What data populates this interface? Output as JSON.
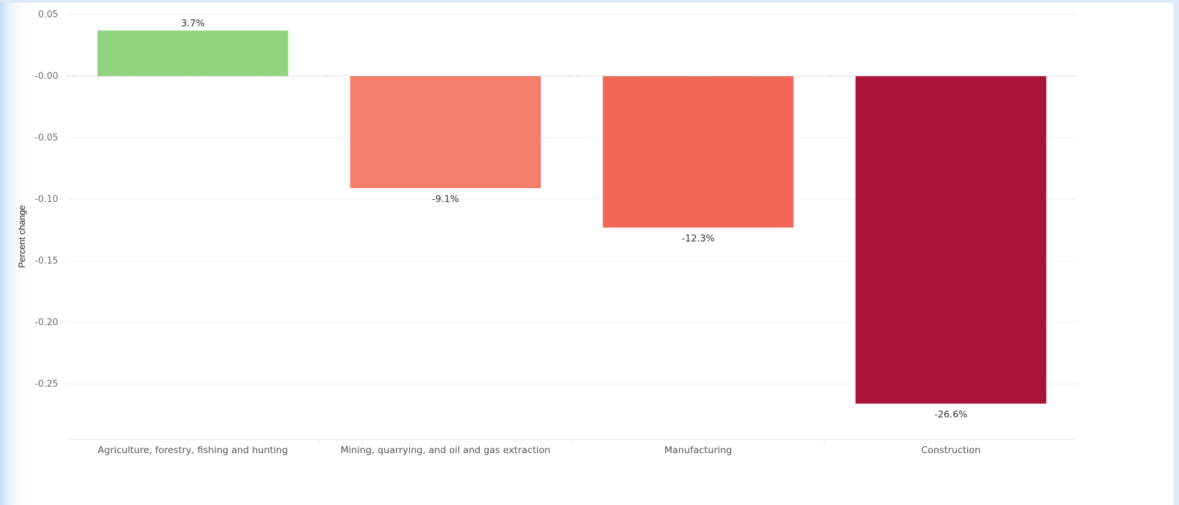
{
  "chart_data": {
    "type": "bar",
    "title": "",
    "xlabel": "",
    "ylabel": "Percent change",
    "ylim": [
      -0.295,
      0.05
    ],
    "yticks": [
      0.05,
      0.0,
      -0.05,
      -0.1,
      -0.15,
      -0.2,
      -0.25
    ],
    "ytick_labels": [
      "0.05",
      "-0.00",
      "-0.05",
      "-0.10",
      "-0.15",
      "-0.20",
      "-0.25"
    ],
    "grid": true,
    "legend": "none",
    "categories": [
      "Agriculture, forestry, fishing and hunting",
      "Mining, quarrying, and oil and gas extraction",
      "Manufacturing",
      "Construction"
    ],
    "values": [
      0.037,
      -0.091,
      -0.123,
      -0.266
    ],
    "data_labels": [
      "3.7%",
      "-9.1%",
      "-12.3%",
      "-26.6%"
    ],
    "colors": [
      "#90d47f",
      "#f47f6b",
      "#f26758",
      "#ac1338"
    ]
  }
}
